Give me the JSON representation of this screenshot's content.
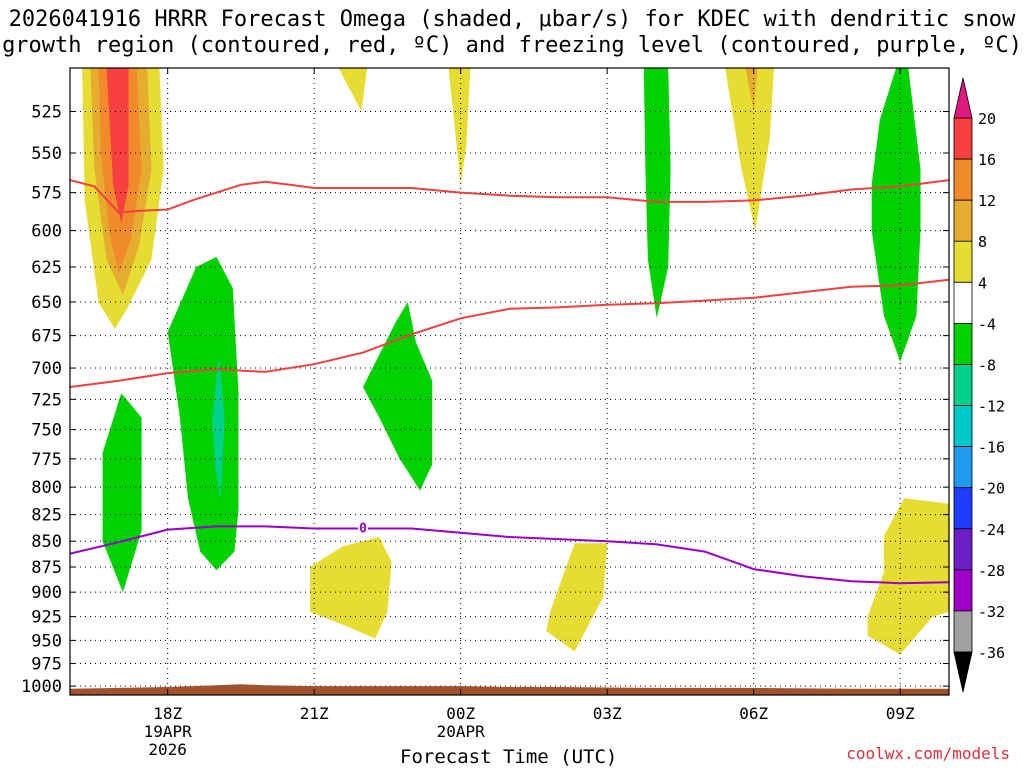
{
  "title_line1": "2026041916 HRRR Forecast Omega (shaded, μbar/s) for KDEC with dendritic snow",
  "title_line2": "growth region (contoured, red, ºC) and freezing level (contoured, purple, ºC)",
  "credit": "coolwx.com/models",
  "chart_data": {
    "type": "heatmap",
    "title": "2026041916 HRRR Forecast Omega (shaded, μbar/s) for KDEC with dendritic snow growth region (contoured, red, ºC) and freezing level (contoured, purple, ºC)",
    "xlabel": "Forecast Time (UTC)",
    "ylabel": "",
    "y_axis": {
      "scale": "log",
      "inverted": true,
      "units": "hPa",
      "range": [
        500,
        1010
      ],
      "ticks": [
        525,
        550,
        575,
        600,
        625,
        650,
        675,
        700,
        725,
        750,
        775,
        800,
        825,
        850,
        875,
        900,
        925,
        950,
        975,
        1000
      ]
    },
    "x_axis": {
      "range": [
        "2026-04-19 16:00",
        "2026-04-20 10:00"
      ],
      "ticks": [
        {
          "time": "2026-04-19 18:00",
          "label": "18Z",
          "sub1": "19APR",
          "sub2": "2026"
        },
        {
          "time": "2026-04-19 21:00",
          "label": "21Z",
          "sub1": "",
          "sub2": ""
        },
        {
          "time": "2026-04-20 00:00",
          "label": "00Z",
          "sub1": "20APR",
          "sub2": ""
        },
        {
          "time": "2026-04-20 03:00",
          "label": "03Z",
          "sub1": "",
          "sub2": ""
        },
        {
          "time": "2026-04-20 06:00",
          "label": "06Z",
          "sub1": "",
          "sub2": ""
        },
        {
          "time": "2026-04-20 09:00",
          "label": "09Z",
          "sub1": "",
          "sub2": ""
        }
      ]
    },
    "grid": true,
    "colorbar": {
      "labels": [
        "20",
        "16",
        "12",
        "8",
        "4",
        "-4",
        "-8",
        "-12",
        "-16",
        "-20",
        "-24",
        "-28",
        "-32",
        "-36"
      ],
      "top_triangle": "#e0187f",
      "bottom_triangle": "#000000",
      "bins": [
        {
          "from": 16,
          "to": 20,
          "color": "#f94040"
        },
        {
          "from": 12,
          "to": 16,
          "color": "#f08a2a"
        },
        {
          "from": 8,
          "to": 12,
          "color": "#e6ac30"
        },
        {
          "from": 4,
          "to": 8,
          "color": "#e6dc32"
        },
        {
          "from": -4,
          "to": 4,
          "color": "#ffffff"
        },
        {
          "from": -8,
          "to": -4,
          "color": "#00d200"
        },
        {
          "from": -12,
          "to": -8,
          "color": "#00d28c"
        },
        {
          "from": -16,
          "to": -12,
          "color": "#00c8c8"
        },
        {
          "from": -20,
          "to": -16,
          "color": "#1e9bf0"
        },
        {
          "from": -24,
          "to": -20,
          "color": "#1e3cff"
        },
        {
          "from": -28,
          "to": -24,
          "color": "#6e1ec8"
        },
        {
          "from": -32,
          "to": -28,
          "color": "#a000c8"
        },
        {
          "from": -36,
          "to": -32,
          "color": "#a0a0a0"
        }
      ]
    },
    "shaded_regions": [
      {
        "color": "#e6dc32",
        "points": [
          [
            "2026-04-19 16:15",
            500
          ],
          [
            "2026-04-19 17:50",
            500
          ],
          [
            "2026-04-19 17:55",
            560
          ],
          [
            "2026-04-19 17:40",
            620
          ],
          [
            "2026-04-19 17:10",
            655
          ],
          [
            "2026-04-19 16:55",
            670
          ],
          [
            "2026-04-19 16:35",
            650
          ],
          [
            "2026-04-19 16:18",
            580
          ]
        ]
      },
      {
        "color": "#e6ac30",
        "points": [
          [
            "2026-04-19 16:25",
            500
          ],
          [
            "2026-04-19 17:35",
            500
          ],
          [
            "2026-04-19 17:40",
            560
          ],
          [
            "2026-04-19 17:25",
            610
          ],
          [
            "2026-04-19 17:05",
            645
          ],
          [
            "2026-04-19 16:45",
            620
          ],
          [
            "2026-04-19 16:30",
            560
          ]
        ]
      },
      {
        "color": "#f08a2a",
        "points": [
          [
            "2026-04-19 16:35",
            500
          ],
          [
            "2026-04-19 17:22",
            500
          ],
          [
            "2026-04-19 17:28",
            560
          ],
          [
            "2026-04-19 17:15",
            605
          ],
          [
            "2026-04-19 17:00",
            630
          ],
          [
            "2026-04-19 16:48",
            600
          ],
          [
            "2026-04-19 16:38",
            550
          ]
        ]
      },
      {
        "color": "#f94040",
        "points": [
          [
            "2026-04-19 16:45",
            500
          ],
          [
            "2026-04-19 17:12",
            500
          ],
          [
            "2026-04-19 17:12",
            570
          ],
          [
            "2026-04-19 17:03",
            595
          ],
          [
            "2026-04-19 16:53",
            570
          ]
        ]
      },
      {
        "color": "#e6dc32",
        "points": [
          [
            "2026-04-19 21:30",
            500
          ],
          [
            "2026-04-19 22:05",
            500
          ],
          [
            "2026-04-19 21:58",
            525
          ]
        ]
      },
      {
        "color": "#e6dc32",
        "points": [
          [
            "2026-04-19 23:45",
            500
          ],
          [
            "2026-04-20 00:12",
            500
          ],
          [
            "2026-04-20 00:07",
            545
          ],
          [
            "2026-04-20 00:00",
            570
          ],
          [
            "2026-04-19 23:55",
            545
          ]
        ]
      },
      {
        "color": "#e6dc32",
        "points": [
          [
            "2026-04-20 05:25",
            500
          ],
          [
            "2026-04-20 06:25",
            500
          ],
          [
            "2026-04-20 06:20",
            540
          ],
          [
            "2026-04-20 06:02",
            600
          ],
          [
            "2026-04-20 05:45",
            560
          ]
        ]
      },
      {
        "color": "#e6ac30",
        "points": [
          [
            "2026-04-20 05:50",
            500
          ],
          [
            "2026-04-20 06:05",
            500
          ],
          [
            "2026-04-20 06:00",
            525
          ]
        ]
      },
      {
        "color": "#00d200",
        "points": [
          [
            "2026-04-20 03:45",
            500
          ],
          [
            "2026-04-20 04:15",
            500
          ],
          [
            "2026-04-20 04:18",
            560
          ],
          [
            "2026-04-20 04:15",
            625
          ],
          [
            "2026-04-20 04:01",
            662
          ],
          [
            "2026-04-20 03:50",
            620
          ],
          [
            "2026-04-20 03:47",
            560
          ]
        ]
      },
      {
        "color": "#00d200",
        "points": [
          [
            "2026-04-20 08:55",
            500
          ],
          [
            "2026-04-20 09:10",
            500
          ],
          [
            "2026-04-20 09:25",
            560
          ],
          [
            "2026-04-20 09:25",
            600
          ],
          [
            "2026-04-20 09:20",
            660
          ],
          [
            "2026-04-20 09:00",
            695
          ],
          [
            "2026-04-20 08:40",
            660
          ],
          [
            "2026-04-20 08:25",
            600
          ],
          [
            "2026-04-20 08:25",
            570
          ],
          [
            "2026-04-20 08:35",
            530
          ]
        ]
      },
      {
        "color": "#00d200",
        "points": [
          [
            "2026-04-19 18:00",
            672
          ],
          [
            "2026-04-19 18:35",
            625
          ],
          [
            "2026-04-19 19:00",
            618
          ],
          [
            "2026-04-19 19:20",
            640
          ],
          [
            "2026-04-19 19:27",
            720
          ],
          [
            "2026-04-19 19:27",
            820
          ],
          [
            "2026-04-19 19:22",
            860
          ],
          [
            "2026-04-19 19:00",
            878
          ],
          [
            "2026-04-19 18:40",
            860
          ],
          [
            "2026-04-19 18:25",
            810
          ],
          [
            "2026-04-19 18:15",
            740
          ]
        ]
      },
      {
        "color": "#00d28c",
        "points": [
          [
            "2026-04-19 18:55",
            740
          ],
          [
            "2026-04-19 19:03",
            690
          ],
          [
            "2026-04-19 19:10",
            740
          ],
          [
            "2026-04-19 19:05",
            812
          ],
          [
            "2026-04-19 18:58",
            780
          ]
        ]
      },
      {
        "color": "#00d200",
        "points": [
          [
            "2026-04-19 16:40",
            770
          ],
          [
            "2026-04-19 17:03",
            720
          ],
          [
            "2026-04-19 17:28",
            740
          ],
          [
            "2026-04-19 17:28",
            840
          ],
          [
            "2026-04-19 17:05",
            900
          ],
          [
            "2026-04-19 16:40",
            850
          ]
        ]
      },
      {
        "color": "#00d200",
        "points": [
          [
            "2026-04-19 22:00",
            715
          ],
          [
            "2026-04-19 22:40",
            665
          ],
          [
            "2026-04-19 22:55",
            650
          ],
          [
            "2026-04-19 23:05",
            680
          ],
          [
            "2026-04-19 23:25",
            710
          ],
          [
            "2026-04-19 23:25",
            780
          ],
          [
            "2026-04-19 23:10",
            803
          ],
          [
            "2026-04-19 22:45",
            775
          ],
          [
            "2026-04-19 22:20",
            740
          ]
        ]
      },
      {
        "color": "#e6dc32",
        "points": [
          [
            "2026-04-19 20:55",
            875
          ],
          [
            "2026-04-19 21:35",
            855
          ],
          [
            "2026-04-19 22:20",
            846
          ],
          [
            "2026-04-19 22:35",
            870
          ],
          [
            "2026-04-19 22:30",
            920
          ],
          [
            "2026-04-19 22:15",
            948
          ],
          [
            "2026-04-19 21:40",
            935
          ],
          [
            "2026-04-19 20:55",
            920
          ]
        ]
      },
      {
        "color": "#e6dc32",
        "points": [
          [
            "2026-04-20 01:50",
            920
          ],
          [
            "2026-04-20 02:20",
            852
          ],
          [
            "2026-04-20 03:00",
            852
          ],
          [
            "2026-04-20 02:55",
            905
          ],
          [
            "2026-04-20 02:20",
            962
          ],
          [
            "2026-04-20 01:45",
            940
          ]
        ]
      },
      {
        "color": "#e6dc32",
        "points": [
          [
            "2026-04-20 08:40",
            845
          ],
          [
            "2026-04-20 09:05",
            810
          ],
          [
            "2026-04-20 10:00",
            815
          ],
          [
            "2026-04-20 10:00",
            920
          ],
          [
            "2026-04-20 09:40",
            925
          ],
          [
            "2026-04-20 09:00",
            965
          ],
          [
            "2026-04-20 08:20",
            945
          ],
          [
            "2026-04-20 08:20",
            925
          ],
          [
            "2026-04-20 08:40",
            880
          ]
        ]
      }
    ],
    "dgz_contours": [
      {
        "name": "",
        "points": [
          [
            "2026-04-19 16:00",
            567
          ],
          [
            "2026-04-19 16:30",
            571
          ],
          [
            "2026-04-19 17:00",
            588
          ],
          [
            "2026-04-19 17:20",
            587
          ],
          [
            "2026-04-19 18:00",
            586
          ],
          [
            "2026-04-19 18:30",
            580
          ],
          [
            "2026-04-19 19:00",
            575
          ],
          [
            "2026-04-19 19:30",
            570
          ],
          [
            "2026-04-19 20:00",
            568
          ],
          [
            "2026-04-19 20:30",
            570
          ],
          [
            "2026-04-19 21:00",
            572
          ],
          [
            "2026-04-19 22:00",
            572
          ],
          [
            "2026-04-19 23:00",
            572
          ],
          [
            "2026-04-20 00:00",
            575
          ],
          [
            "2026-04-20 01:00",
            577
          ],
          [
            "2026-04-20 02:00",
            578
          ],
          [
            "2026-04-20 03:00",
            578
          ],
          [
            "2026-04-20 04:00",
            581
          ],
          [
            "2026-04-20 05:00",
            581
          ],
          [
            "2026-04-20 06:00",
            580
          ],
          [
            "2026-04-20 07:00",
            577
          ],
          [
            "2026-04-20 08:00",
            573
          ],
          [
            "2026-04-20 09:00",
            571
          ],
          [
            "2026-04-20 10:00",
            567
          ]
        ]
      },
      {
        "name": "",
        "points": [
          [
            "2026-04-19 16:00",
            715
          ],
          [
            "2026-04-19 17:00",
            710
          ],
          [
            "2026-04-19 18:00",
            704
          ],
          [
            "2026-04-19 19:00",
            701
          ],
          [
            "2026-04-19 19:30",
            702
          ],
          [
            "2026-04-19 20:00",
            703
          ],
          [
            "2026-04-19 21:00",
            697
          ],
          [
            "2026-04-19 22:00",
            688
          ],
          [
            "2026-04-19 23:00",
            674
          ],
          [
            "2026-04-20 00:00",
            662
          ],
          [
            "2026-04-20 01:00",
            655
          ],
          [
            "2026-04-20 02:00",
            654
          ],
          [
            "2026-04-20 03:00",
            652
          ],
          [
            "2026-04-20 04:00",
            651
          ],
          [
            "2026-04-20 05:00",
            649
          ],
          [
            "2026-04-20 06:00",
            647
          ],
          [
            "2026-04-20 07:00",
            643
          ],
          [
            "2026-04-20 08:00",
            639
          ],
          [
            "2026-04-20 09:00",
            638
          ],
          [
            "2026-04-20 10:00",
            634
          ]
        ]
      }
    ],
    "freezing_level": {
      "label": "0",
      "label_at": [
        "2026-04-19 22:00",
        837
      ],
      "points": [
        [
          "2026-04-19 16:00",
          862
        ],
        [
          "2026-04-19 17:00",
          851
        ],
        [
          "2026-04-19 18:00",
          839
        ],
        [
          "2026-04-19 19:00",
          836
        ],
        [
          "2026-04-19 20:00",
          836
        ],
        [
          "2026-04-19 21:00",
          838
        ],
        [
          "2026-04-19 22:00",
          838
        ],
        [
          "2026-04-19 23:00",
          838
        ],
        [
          "2026-04-20 00:00",
          842
        ],
        [
          "2026-04-20 01:00",
          846
        ],
        [
          "2026-04-20 02:00",
          848
        ],
        [
          "2026-04-20 03:00",
          850
        ],
        [
          "2026-04-20 04:00",
          853
        ],
        [
          "2026-04-20 05:00",
          860
        ],
        [
          "2026-04-20 06:00",
          877
        ],
        [
          "2026-04-20 07:00",
          884
        ],
        [
          "2026-04-20 08:00",
          889
        ],
        [
          "2026-04-20 09:00",
          891
        ],
        [
          "2026-04-20 10:00",
          890
        ]
      ]
    },
    "terrain": {
      "color": "#a0522d",
      "points": [
        [
          "2026-04-19 16:00",
          1003
        ],
        [
          "2026-04-19 17:00",
          1002
        ],
        [
          "2026-04-19 18:00",
          1001
        ],
        [
          "2026-04-19 19:00",
          999
        ],
        [
          "2026-04-19 19:30",
          998
        ],
        [
          "2026-04-19 20:00",
          999
        ],
        [
          "2026-04-19 21:00",
          1000
        ],
        [
          "2026-04-19 22:00",
          1000
        ],
        [
          "2026-04-20 00:00",
          1000
        ],
        [
          "2026-04-20 01:00",
          1001
        ],
        [
          "2026-04-20 02:00",
          1001
        ],
        [
          "2026-04-20 04:00",
          1002
        ],
        [
          "2026-04-20 06:00",
          1002
        ],
        [
          "2026-04-20 08:00",
          1003
        ],
        [
          "2026-04-20 10:00",
          1003
        ]
      ]
    }
  }
}
